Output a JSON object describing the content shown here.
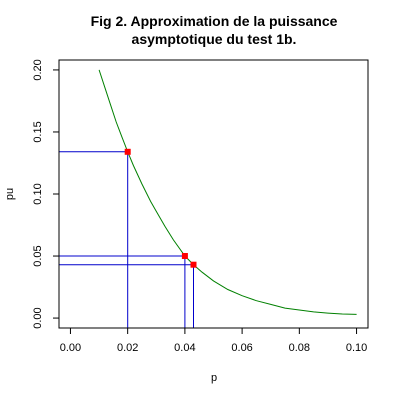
{
  "chart_data": {
    "type": "line",
    "title_lines": [
      "Fig 2. Approximation de la puissance",
      "asymptotique du test 1b."
    ],
    "xlabel": "p",
    "ylabel": "pu",
    "xlim": [
      -0.004,
      0.104
    ],
    "ylim": [
      -0.008,
      0.208
    ],
    "xticks": [
      0.0,
      0.02,
      0.04,
      0.06,
      0.08,
      0.1
    ],
    "xtick_labels": [
      "0.00",
      "0.02",
      "0.04",
      "0.06",
      "0.08",
      "0.10"
    ],
    "yticks": [
      0.0,
      0.05,
      0.1,
      0.15,
      0.2
    ],
    "ytick_labels": [
      "0.00",
      "0.05",
      "0.10",
      "0.15",
      "0.20"
    ],
    "grid": false,
    "curve": {
      "name": "",
      "color": "#008000",
      "x": [
        0.01,
        0.012,
        0.014,
        0.016,
        0.018,
        0.02,
        0.022,
        0.025,
        0.028,
        0.03,
        0.033,
        0.036,
        0.04,
        0.043,
        0.046,
        0.05,
        0.055,
        0.06,
        0.065,
        0.07,
        0.075,
        0.08,
        0.085,
        0.09,
        0.095,
        0.1
      ],
      "y": [
        0.2,
        0.186,
        0.172,
        0.158,
        0.146,
        0.134,
        0.123,
        0.108,
        0.094,
        0.086,
        0.074,
        0.063,
        0.05,
        0.043,
        0.037,
        0.03,
        0.023,
        0.018,
        0.014,
        0.011,
        0.008,
        0.0065,
        0.005,
        0.004,
        0.0033,
        0.003
      ]
    },
    "highlight_points": {
      "color": "#ff0000",
      "guide_color": "#0000cc",
      "points": [
        {
          "x": 0.02,
          "y": 0.134
        },
        {
          "x": 0.04,
          "y": 0.05
        },
        {
          "x": 0.043,
          "y": 0.043
        }
      ]
    }
  }
}
